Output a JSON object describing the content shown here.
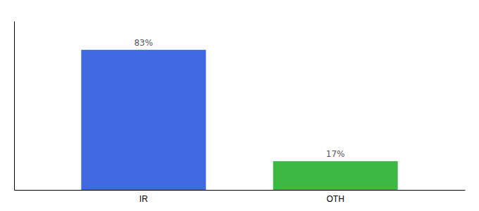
{
  "chart_data": {
    "type": "bar",
    "categories": [
      "IR",
      "OTH"
    ],
    "values": [
      83,
      17
    ],
    "value_labels": [
      "83%",
      "17%"
    ],
    "colors": [
      "#4169e1",
      "#3cb843"
    ],
    "ylim": [
      0,
      100
    ],
    "data_labels": true,
    "tick_labels": "x",
    "grid": false
  }
}
